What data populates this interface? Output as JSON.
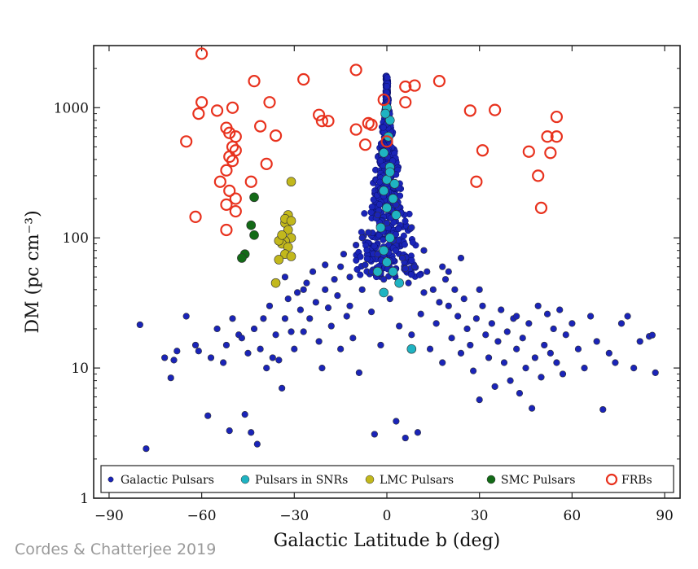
{
  "credit": "Cordes & Chatterjee 2019",
  "chart_data": {
    "type": "scatter",
    "xlabel": "Galactic Latitude b  (deg)",
    "ylabel": "DM  (pc cm⁻³)",
    "xlim": [
      -95,
      95
    ],
    "ylim": [
      1,
      3000
    ],
    "yscale": "log",
    "xticks": [
      -90,
      -60,
      -30,
      0,
      30,
      60,
      90
    ],
    "xtick_labels": [
      "−90",
      "−60",
      "−30",
      "0",
      "30",
      "60",
      "90"
    ],
    "yticks": [
      1,
      10,
      100,
      1000
    ],
    "ytick_labels": [
      "1",
      "10",
      "100",
      "1000"
    ],
    "legend_position": "bottom",
    "colors": {
      "galactic": "#1a24b8",
      "snr": "#1fb3c2",
      "lmc": "#c2b81c",
      "smc": "#136a17",
      "frb": "#e8321e"
    },
    "series": [
      {
        "name": "Galactic Pulsars",
        "marker": "filled-circle",
        "color": "#1a24b8",
        "points": [
          [
            -80,
            21.5
          ],
          [
            -78,
            2.4
          ],
          [
            -72,
            12
          ],
          [
            -70,
            8.4
          ],
          [
            -69,
            11.5
          ],
          [
            -68,
            13.5
          ],
          [
            -65,
            25
          ],
          [
            -62,
            15
          ],
          [
            -61,
            13.5
          ],
          [
            -58,
            4.3
          ],
          [
            -57,
            12
          ],
          [
            -55,
            20
          ],
          [
            -52,
            15
          ],
          [
            -51,
            3.3
          ],
          [
            -50,
            24
          ],
          [
            -48,
            18
          ],
          [
            -46,
            4.4
          ],
          [
            -45,
            13
          ],
          [
            -44,
            3.2
          ],
          [
            -43,
            20
          ],
          [
            -42,
            2.6
          ],
          [
            -41,
            14
          ],
          [
            -40,
            24
          ],
          [
            -39,
            10
          ],
          [
            -38,
            30
          ],
          [
            -36,
            18
          ],
          [
            -35,
            11.5
          ],
          [
            -34,
            7
          ],
          [
            -33,
            24
          ],
          [
            -32,
            34
          ],
          [
            -31,
            19
          ],
          [
            -30,
            14
          ],
          [
            -29,
            38
          ],
          [
            -28,
            28
          ],
          [
            -27,
            19
          ],
          [
            -26,
            45
          ],
          [
            -25,
            24
          ],
          [
            -24,
            55
          ],
          [
            -23,
            32
          ],
          [
            -22,
            16
          ],
          [
            -21,
            10
          ],
          [
            -20,
            62
          ],
          [
            -19,
            29
          ],
          [
            -18,
            21
          ],
          [
            -17,
            48
          ],
          [
            -16,
            36
          ],
          [
            -15,
            14
          ],
          [
            -14,
            75
          ],
          [
            -13,
            25
          ],
          [
            -12,
            50
          ],
          [
            -11,
            17
          ],
          [
            -10,
            88
          ],
          [
            -9,
            9.2
          ],
          [
            -8,
            40
          ],
          [
            -7,
            62
          ],
          [
            -6,
            110
          ],
          [
            -5,
            27
          ],
          [
            -4,
            3.1
          ],
          [
            -3,
            75
          ],
          [
            -2,
            15
          ],
          [
            -1,
            48
          ],
          [
            0,
            130
          ],
          [
            1,
            34
          ],
          [
            2,
            95
          ],
          [
            3,
            3.9
          ],
          [
            4,
            21
          ],
          [
            5,
            70
          ],
          [
            6,
            2.9
          ],
          [
            7,
            45
          ],
          [
            8,
            18
          ],
          [
            9,
            60
          ],
          [
            10,
            3.2
          ],
          [
            11,
            26
          ],
          [
            12,
            38
          ],
          [
            13,
            55
          ],
          [
            14,
            14
          ],
          [
            15,
            40
          ],
          [
            16,
            22
          ],
          [
            17,
            32
          ],
          [
            18,
            11
          ],
          [
            19,
            48
          ],
          [
            20,
            30
          ],
          [
            21,
            17
          ],
          [
            22,
            40
          ],
          [
            23,
            25
          ],
          [
            24,
            13
          ],
          [
            25,
            34
          ],
          [
            26,
            20
          ],
          [
            27,
            15
          ],
          [
            28,
            9.5
          ],
          [
            29,
            24
          ],
          [
            30,
            5.7
          ],
          [
            31,
            30
          ],
          [
            32,
            18
          ],
          [
            33,
            12
          ],
          [
            34,
            22
          ],
          [
            35,
            7.2
          ],
          [
            36,
            16
          ],
          [
            37,
            28
          ],
          [
            38,
            11
          ],
          [
            39,
            19
          ],
          [
            40,
            8
          ],
          [
            41,
            24
          ],
          [
            42,
            14
          ],
          [
            43,
            6.4
          ],
          [
            44,
            17
          ],
          [
            45,
            10
          ],
          [
            46,
            22
          ],
          [
            47,
            4.9
          ],
          [
            48,
            12
          ],
          [
            49,
            30
          ],
          [
            50,
            8.5
          ],
          [
            51,
            15
          ],
          [
            52,
            26
          ],
          [
            53,
            13
          ],
          [
            54,
            20
          ],
          [
            55,
            11
          ],
          [
            56,
            28
          ],
          [
            57,
            9
          ],
          [
            58,
            18
          ],
          [
            60,
            22
          ],
          [
            62,
            14
          ],
          [
            64,
            10
          ],
          [
            66,
            25
          ],
          [
            68,
            16
          ],
          [
            70,
            4.8
          ],
          [
            72,
            13
          ],
          [
            74,
            11
          ],
          [
            76,
            22
          ],
          [
            78,
            25
          ],
          [
            80,
            10
          ],
          [
            82,
            16
          ],
          [
            85,
            17.5
          ],
          [
            86,
            17.9
          ],
          [
            87,
            9.2
          ],
          [
            -47,
            17
          ],
          [
            -37,
            12
          ],
          [
            -27,
            40
          ],
          [
            -15,
            60
          ],
          [
            -5,
            55
          ],
          [
            6,
            58
          ],
          [
            18,
            60
          ],
          [
            30,
            40
          ],
          [
            42,
            25
          ],
          [
            -53,
            11
          ],
          [
            -33,
            50
          ],
          [
            -12,
            30
          ],
          [
            12,
            80
          ],
          [
            24,
            70
          ],
          [
            -20,
            40
          ],
          [
            20,
            55
          ],
          [
            -8,
            100
          ],
          [
            8,
            120
          ],
          [
            -3,
            150
          ],
          [
            3,
            180
          ]
        ]
      },
      {
        "name": "Pulsars in SNRs",
        "marker": "filled-circle",
        "color": "#1fb3c2",
        "points": [
          [
            0,
            1000
          ],
          [
            1,
            800
          ],
          [
            0.5,
            600
          ],
          [
            -1,
            450
          ],
          [
            1,
            350
          ],
          [
            0,
            280
          ],
          [
            -1,
            230
          ],
          [
            2,
            200
          ],
          [
            0,
            170
          ],
          [
            3,
            150
          ],
          [
            -2,
            120
          ],
          [
            1,
            100
          ],
          [
            -1,
            80
          ],
          [
            0,
            65
          ],
          [
            2,
            55
          ],
          [
            -3,
            55
          ],
          [
            4,
            45
          ],
          [
            -1,
            38
          ],
          [
            8,
            14
          ],
          [
            1,
            320
          ],
          [
            -0.5,
            900
          ],
          [
            2.5,
            260
          ]
        ]
      },
      {
        "name": "LMC Pulsars",
        "marker": "filled-circle",
        "color": "#c2b81c",
        "points": [
          [
            -31,
            270
          ],
          [
            -32,
            150
          ],
          [
            -33,
            130
          ],
          [
            -32,
            115
          ],
          [
            -31,
            100
          ],
          [
            -33,
            95
          ],
          [
            -34,
            90
          ],
          [
            -32,
            85
          ],
          [
            -35,
            95
          ],
          [
            -33,
            75
          ],
          [
            -31,
            72
          ],
          [
            -35,
            68
          ],
          [
            -36,
            45
          ],
          [
            -34,
            105
          ],
          [
            -33,
            140
          ],
          [
            -31,
            135
          ]
        ]
      },
      {
        "name": "SMC Pulsars",
        "marker": "filled-circle",
        "color": "#136a17",
        "points": [
          [
            -43,
            205
          ],
          [
            -44,
            125
          ],
          [
            -43,
            105
          ],
          [
            -46,
            75
          ],
          [
            -47,
            70
          ]
        ]
      },
      {
        "name": "FRBs",
        "marker": "open-circle",
        "color": "#e8321e",
        "points": [
          [
            -60,
            2600
          ],
          [
            -60,
            1100
          ],
          [
            -61,
            900
          ],
          [
            -55,
            950
          ],
          [
            -50,
            1000
          ],
          [
            -52,
            700
          ],
          [
            -51,
            640
          ],
          [
            -49,
            600
          ],
          [
            -50,
            500
          ],
          [
            -49,
            470
          ],
          [
            -51,
            420
          ],
          [
            -50,
            390
          ],
          [
            -52,
            330
          ],
          [
            -54,
            270
          ],
          [
            -51,
            230
          ],
          [
            -49,
            200
          ],
          [
            -52,
            180
          ],
          [
            -49,
            160
          ],
          [
            -52,
            115
          ],
          [
            -65,
            550
          ],
          [
            -62,
            145
          ],
          [
            -43,
            1600
          ],
          [
            -41,
            720
          ],
          [
            -39,
            370
          ],
          [
            -38,
            1100
          ],
          [
            -36,
            610
          ],
          [
            -44,
            270
          ],
          [
            -27,
            1650
          ],
          [
            -22,
            880
          ],
          [
            -21,
            790
          ],
          [
            -19,
            790
          ],
          [
            -10,
            1950
          ],
          [
            -10,
            680
          ],
          [
            -6,
            760
          ],
          [
            -7,
            520
          ],
          [
            -5,
            740
          ],
          [
            -1,
            1150
          ],
          [
            0,
            550
          ],
          [
            6,
            1100
          ],
          [
            6,
            1450
          ],
          [
            9,
            1480
          ],
          [
            17,
            1600
          ],
          [
            27,
            950
          ],
          [
            29,
            270
          ],
          [
            31,
            470
          ],
          [
            35,
            960
          ],
          [
            46,
            460
          ],
          [
            49,
            300
          ],
          [
            50,
            170
          ],
          [
            52,
            600
          ],
          [
            53,
            450
          ],
          [
            55,
            600
          ],
          [
            55,
            850
          ]
        ]
      }
    ]
  }
}
